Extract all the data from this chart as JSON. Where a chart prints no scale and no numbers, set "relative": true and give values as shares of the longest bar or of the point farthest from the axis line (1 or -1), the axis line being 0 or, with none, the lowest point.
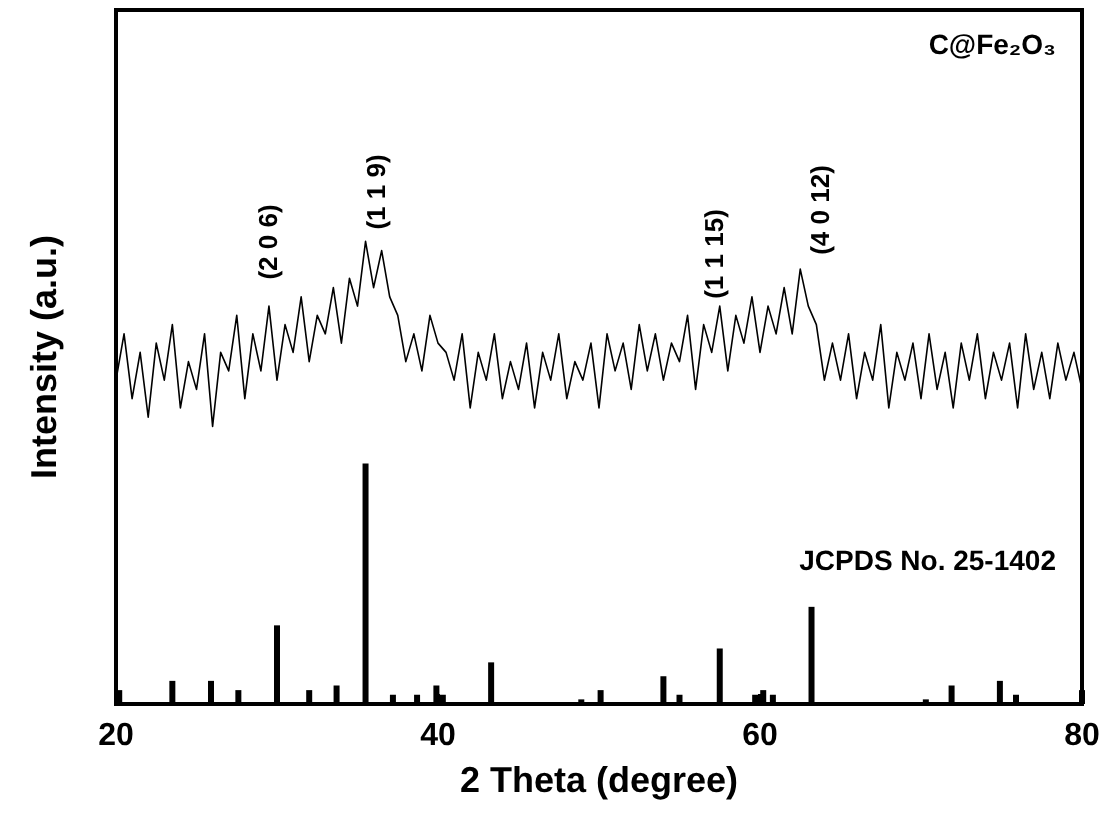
{
  "chart_data": {
    "type": "line",
    "relative": true,
    "xlabel": "2 Theta (degree)",
    "ylabel": "Intensity (a.u.)",
    "xlim": [
      20,
      80
    ],
    "xticks": [
      20,
      40,
      60,
      80
    ],
    "grid": false,
    "marker": "none",
    "line_style": "solid",
    "annotations": [
      "C@Fe₂O₃",
      "JCPDS No. 25-1402",
      "(2 0 6)",
      "(1 1 9)",
      "(1 1 15)",
      "(4 0 12)"
    ],
    "series": [
      {
        "color": "#000000",
        "x": [
          20,
          20.5,
          21,
          21.5,
          22,
          22.5,
          23,
          23.5,
          24,
          24.5,
          25,
          25.5,
          26,
          26.5,
          27,
          27.5,
          28,
          28.5,
          29,
          29.5,
          30,
          30.5,
          31,
          31.5,
          32,
          32.5,
          33,
          33.5,
          34,
          34.5,
          35,
          35.5,
          36,
          36.5,
          37,
          37.5,
          38,
          38.5,
          39,
          39.5,
          40,
          40.5,
          41,
          41.5,
          42,
          42.5,
          43,
          43.5,
          44,
          44.5,
          45,
          45.5,
          46,
          46.5,
          47,
          47.5,
          48,
          48.5,
          49,
          49.5,
          50,
          50.5,
          51,
          51.5,
          52,
          52.5,
          53,
          53.5,
          54,
          54.5,
          55,
          55.5,
          56,
          56.5,
          57,
          57.5,
          58,
          58.5,
          59,
          59.5,
          60,
          60.5,
          61,
          61.5,
          62,
          62.5,
          63,
          63.5,
          64,
          64.5,
          65,
          65.5,
          66,
          66.5,
          67,
          67.5,
          68,
          68.5,
          69,
          69.5,
          70,
          70.5,
          71,
          71.5,
          72,
          72.5,
          73,
          73.5,
          74,
          74.5,
          75,
          75.5,
          76,
          76.5,
          77,
          77.5,
          78,
          78.5,
          79,
          79.5,
          80
        ],
        "values": [
          0.7,
          0.8,
          0.66,
          0.76,
          0.62,
          0.78,
          0.7,
          0.82,
          0.64,
          0.74,
          0.68,
          0.8,
          0.6,
          0.76,
          0.72,
          0.84,
          0.66,
          0.8,
          0.72,
          0.86,
          0.7,
          0.82,
          0.76,
          0.88,
          0.74,
          0.84,
          0.8,
          0.9,
          0.78,
          0.92,
          0.86,
          1.0,
          0.9,
          0.98,
          0.88,
          0.84,
          0.74,
          0.8,
          0.72,
          0.84,
          0.78,
          0.76,
          0.7,
          0.8,
          0.64,
          0.76,
          0.7,
          0.8,
          0.66,
          0.74,
          0.68,
          0.78,
          0.64,
          0.76,
          0.7,
          0.8,
          0.66,
          0.74,
          0.7,
          0.78,
          0.64,
          0.8,
          0.72,
          0.78,
          0.68,
          0.82,
          0.72,
          0.8,
          0.7,
          0.78,
          0.74,
          0.84,
          0.68,
          0.82,
          0.76,
          0.86,
          0.72,
          0.84,
          0.78,
          0.88,
          0.76,
          0.86,
          0.8,
          0.9,
          0.8,
          0.94,
          0.86,
          0.82,
          0.7,
          0.78,
          0.7,
          0.8,
          0.66,
          0.76,
          0.7,
          0.82,
          0.64,
          0.76,
          0.7,
          0.78,
          0.66,
          0.8,
          0.68,
          0.76,
          0.64,
          0.78,
          0.7,
          0.8,
          0.66,
          0.76,
          0.7,
          0.78,
          0.64,
          0.8,
          0.68,
          0.76,
          0.66,
          0.78,
          0.7,
          0.76,
          0.68
        ]
      },
      {
        "type": "bar",
        "color": "#000000",
        "x": [
          20.2,
          23.5,
          25.9,
          27.6,
          30.0,
          32.0,
          33.7,
          35.5,
          37.2,
          38.7,
          39.9,
          40.3,
          43.3,
          48.9,
          50.1,
          54.0,
          55.0,
          57.5,
          59.7,
          60.2,
          60.8,
          63.2,
          70.3,
          71.9,
          74.9,
          75.9,
          80.0
        ],
        "values": [
          0.03,
          0.05,
          0.05,
          0.03,
          0.17,
          0.03,
          0.04,
          0.52,
          0.02,
          0.02,
          0.04,
          0.02,
          0.09,
          0.01,
          0.03,
          0.06,
          0.02,
          0.12,
          0.02,
          0.03,
          0.02,
          0.21,
          0.01,
          0.04,
          0.05,
          0.02,
          0.03
        ]
      }
    ]
  }
}
